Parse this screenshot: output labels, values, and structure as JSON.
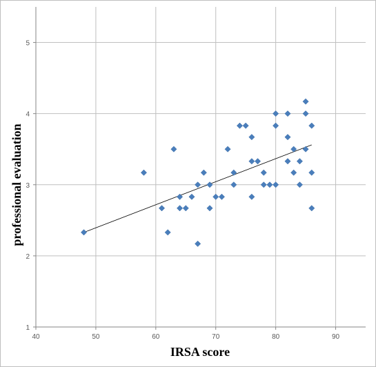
{
  "chart_data": {
    "type": "scatter",
    "title": "",
    "xlabel": "IRSA score",
    "ylabel": "professional evaluation",
    "xlim": [
      40,
      95
    ],
    "ylim": [
      1,
      5.5
    ],
    "x_ticks": [
      40,
      50,
      60,
      70,
      80,
      90
    ],
    "y_ticks": [
      1,
      2,
      3,
      4,
      5
    ],
    "grid": true,
    "legend": "none",
    "marker": "diamond",
    "colors": {
      "points": "#4a7ebb",
      "trendline": "#000000",
      "grid": "#bfbfbf",
      "axis": "#868686"
    },
    "trendline": {
      "type": "linear",
      "x": [
        48,
        86
      ],
      "y": [
        2.33,
        3.56
      ]
    },
    "series": [
      {
        "points": [
          [
            48,
            2.33
          ],
          [
            58,
            3.17
          ],
          [
            61,
            2.67
          ],
          [
            62,
            2.33
          ],
          [
            63,
            3.5
          ],
          [
            64,
            2.83
          ],
          [
            64,
            2.67
          ],
          [
            65,
            2.67
          ],
          [
            66,
            2.83
          ],
          [
            67,
            3.0
          ],
          [
            67,
            2.17
          ],
          [
            68,
            3.17
          ],
          [
            69,
            3.0
          ],
          [
            69,
            2.67
          ],
          [
            70,
            2.83
          ],
          [
            71,
            2.83
          ],
          [
            72,
            3.5
          ],
          [
            73,
            3.17
          ],
          [
            73,
            3.0
          ],
          [
            74,
            3.83
          ],
          [
            75,
            3.83
          ],
          [
            76,
            3.67
          ],
          [
            76,
            3.33
          ],
          [
            76,
            2.83
          ],
          [
            77,
            3.33
          ],
          [
            78,
            3.17
          ],
          [
            78,
            3.0
          ],
          [
            79,
            3.0
          ],
          [
            80,
            4.0
          ],
          [
            80,
            3.83
          ],
          [
            80,
            3.0
          ],
          [
            82,
            4.0
          ],
          [
            82,
            3.67
          ],
          [
            82,
            3.33
          ],
          [
            83,
            3.5
          ],
          [
            83,
            3.17
          ],
          [
            84,
            3.33
          ],
          [
            84,
            3.0
          ],
          [
            85,
            4.17
          ],
          [
            85,
            4.0
          ],
          [
            85,
            3.5
          ],
          [
            86,
            3.83
          ],
          [
            86,
            3.17
          ],
          [
            86,
            2.67
          ]
        ]
      }
    ]
  }
}
